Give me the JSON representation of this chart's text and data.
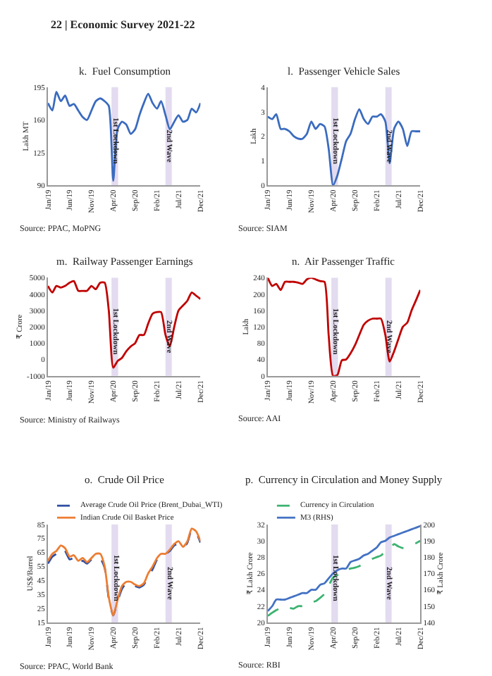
{
  "chart_data": [
    {
      "type": "line",
      "title": "k.  Fuel Consumption",
      "ylabel": "Lakh MT",
      "annotations": [
        "22 | Economic Survey 2021-22",
        "Source: PPAC, MoPNG"
      ],
      "x": [
        "2019-01",
        "2019-02",
        "2019-03",
        "2019-04",
        "2019-05",
        "2019-06",
        "2019-07",
        "2019-08",
        "2019-09",
        "2019-10",
        "2019-11",
        "2019-12",
        "2020-01",
        "2020-02",
        "2020-03",
        "2020-04",
        "2020-05",
        "2020-06",
        "2020-07",
        "2020-08",
        "2020-09",
        "2020-10",
        "2020-11",
        "2020-12",
        "2021-01",
        "2021-02",
        "2021-03",
        "2021-04",
        "2021-05",
        "2021-06",
        "2021-07",
        "2021-08",
        "2021-09",
        "2021-10",
        "2021-11",
        "2021-12"
      ],
      "xlim": [
        "2019-01",
        "2021-12"
      ],
      "xticks": [
        {
          "value": "2019-01",
          "label": "Jan/19"
        },
        {
          "value": "2019-06",
          "label": "Jun/19"
        },
        {
          "value": "2019-11",
          "label": "Nov/19"
        },
        {
          "value": "2020-04",
          "label": "Apr/20"
        },
        {
          "value": "2020-09",
          "label": "Sep/20"
        },
        {
          "value": "2021-02",
          "label": "Feb/21"
        },
        {
          "value": "2021-07",
          "label": "Jul/21"
        },
        {
          "value": "2021-12",
          "label": "Dec/21"
        }
      ],
      "ylim": [
        90,
        195
      ],
      "yticks": [
        90,
        125,
        160,
        195
      ],
      "line_style": "solid",
      "series": [
        {
          "color": "#3a6bbf",
          "values": [
            178,
            170,
            190,
            180,
            186,
            175,
            177,
            170,
            163,
            160,
            170,
            180,
            183,
            180,
            175,
            95,
            150,
            158,
            155,
            145,
            150,
            165,
            178,
            188,
            178,
            172,
            180,
            165,
            150,
            158,
            165,
            158,
            160,
            172,
            168,
            178
          ]
        }
      ],
      "bands": [
        {
          "axis": "x",
          "from": "2020-03-20",
          "to": "2020-05-05",
          "label": "1st Lockdown",
          "color": "#e3dbef"
        },
        {
          "axis": "x",
          "from": "2021-04-01",
          "to": "2021-05-15",
          "label": "2nd Wave",
          "color": "#e3dbef"
        }
      ]
    },
    {
      "type": "line",
      "title": "l.  Passenger Vehicle Sales",
      "ylabel": "Lakh",
      "annotations": [
        "Source: SIAM"
      ],
      "x": [
        "2019-01",
        "2019-02",
        "2019-03",
        "2019-04",
        "2019-05",
        "2019-06",
        "2019-07",
        "2019-08",
        "2019-09",
        "2019-10",
        "2019-11",
        "2019-12",
        "2020-01",
        "2020-02",
        "2020-03",
        "2020-04",
        "2020-05",
        "2020-06",
        "2020-07",
        "2020-08",
        "2020-09",
        "2020-10",
        "2020-11",
        "2020-12",
        "2021-01",
        "2021-02",
        "2021-03",
        "2021-04",
        "2021-05",
        "2021-06",
        "2021-07",
        "2021-08",
        "2021-09",
        "2021-10",
        "2021-11",
        "2021-12"
      ],
      "xlim": [
        "2019-01",
        "2021-12"
      ],
      "xticks": [
        {
          "value": "2019-01",
          "label": "Jan/19"
        },
        {
          "value": "2019-06",
          "label": "Jun/19"
        },
        {
          "value": "2019-11",
          "label": "Nov/19"
        },
        {
          "value": "2020-04",
          "label": "Apr/20"
        },
        {
          "value": "2020-09",
          "label": "Sep/20"
        },
        {
          "value": "2021-02",
          "label": "Feb/21"
        },
        {
          "value": "2021-07",
          "label": "Jul/21"
        },
        {
          "value": "2021-12",
          "label": "Dec/21"
        }
      ],
      "ylim": [
        0,
        4
      ],
      "yticks": [
        0,
        1,
        2,
        3,
        4
      ],
      "line_style": "solid",
      "series": [
        {
          "color": "#3a6bbf",
          "values": [
            2.8,
            2.7,
            2.9,
            2.3,
            2.3,
            2.2,
            2.0,
            1.9,
            1.9,
            2.1,
            2.6,
            2.3,
            2.5,
            2.4,
            1.5,
            0.0,
            0.4,
            1.1,
            1.8,
            2.1,
            2.7,
            3.1,
            2.7,
            2.5,
            2.8,
            2.8,
            2.9,
            2.6,
            0.9,
            2.3,
            2.6,
            2.3,
            1.6,
            2.2,
            2.2,
            2.2
          ]
        }
      ],
      "bands": [
        {
          "axis": "x",
          "from": "2020-03-20",
          "to": "2020-05-05",
          "label": "1st Lockdown",
          "color": "#e3dbef"
        },
        {
          "axis": "x",
          "from": "2021-04-01",
          "to": "2021-05-15",
          "label": "2nd Wave",
          "color": "#e3dbef"
        }
      ]
    },
    {
      "type": "line",
      "title": "m.  Railway Passenger Earnings",
      "ylabel": "₹ Crore",
      "annotations": [
        "Source: Ministry of Railways"
      ],
      "x": [
        "2019-01",
        "2019-02",
        "2019-03",
        "2019-04",
        "2019-05",
        "2019-06",
        "2019-07",
        "2019-08",
        "2019-09",
        "2019-10",
        "2019-11",
        "2019-12",
        "2020-01",
        "2020-02",
        "2020-03",
        "2020-04",
        "2020-05",
        "2020-06",
        "2020-07",
        "2020-08",
        "2020-09",
        "2020-10",
        "2020-11",
        "2020-12",
        "2021-01",
        "2021-02",
        "2021-03",
        "2021-04",
        "2021-05",
        "2021-06",
        "2021-07",
        "2021-08",
        "2021-09",
        "2021-10",
        "2021-11",
        "2021-12"
      ],
      "xlim": [
        "2019-01",
        "2021-12"
      ],
      "xticks": [
        {
          "value": "2019-01",
          "label": "Jan/19"
        },
        {
          "value": "2019-06",
          "label": "Jun/19"
        },
        {
          "value": "2019-11",
          "label": "Nov/19"
        },
        {
          "value": "2020-04",
          "label": "Apr/20"
        },
        {
          "value": "2020-09",
          "label": "Sep/20"
        },
        {
          "value": "2021-02",
          "label": "Feb/21"
        },
        {
          "value": "2021-07",
          "label": "Jul/21"
        },
        {
          "value": "2021-12",
          "label": "Dec/21"
        }
      ],
      "ylim": [
        -1000,
        5000
      ],
      "yticks": [
        -1000,
        0,
        1000,
        2000,
        3000,
        4000,
        5000
      ],
      "line_style": "solid",
      "series": [
        {
          "color": "#c00000",
          "values": [
            4500,
            4100,
            4500,
            4400,
            4500,
            4700,
            4800,
            4200,
            4200,
            4200,
            4500,
            4300,
            4700,
            4700,
            3000,
            -500,
            -100,
            100,
            500,
            800,
            1000,
            1500,
            1500,
            2200,
            2800,
            2900,
            2900,
            1500,
            800,
            2000,
            3000,
            3300,
            3600,
            4100,
            3900,
            3700
          ]
        }
      ],
      "bands": [
        {
          "axis": "x",
          "from": "2020-03-20",
          "to": "2020-05-05",
          "label": "1st Lockdown",
          "color": "#e3dbef"
        },
        {
          "axis": "x",
          "from": "2021-04-01",
          "to": "2021-05-15",
          "label": "2nd Wave",
          "color": "#e3dbef"
        }
      ]
    },
    {
      "type": "line",
      "title": "n.  Air Passenger Traffic",
      "ylabel": "Lakh",
      "annotations": [
        "Source: AAI"
      ],
      "x": [
        "2019-01",
        "2019-02",
        "2019-03",
        "2019-04",
        "2019-05",
        "2019-06",
        "2019-07",
        "2019-08",
        "2019-09",
        "2019-10",
        "2019-11",
        "2019-12",
        "2020-01",
        "2020-02",
        "2020-03",
        "2020-04",
        "2020-05",
        "2020-06",
        "2020-07",
        "2020-08",
        "2020-09",
        "2020-10",
        "2020-11",
        "2020-12",
        "2021-01",
        "2021-02",
        "2021-03",
        "2021-04",
        "2021-05",
        "2021-06",
        "2021-07",
        "2021-08",
        "2021-09",
        "2021-10",
        "2021-11",
        "2021-12"
      ],
      "xlim": [
        "2019-01",
        "2021-12"
      ],
      "xticks": [
        {
          "value": "2019-01",
          "label": "Jan/19"
        },
        {
          "value": "2019-06",
          "label": "Jun/19"
        },
        {
          "value": "2019-11",
          "label": "Nov/19"
        },
        {
          "value": "2020-04",
          "label": "Apr/20"
        },
        {
          "value": "2020-09",
          "label": "Sep/20"
        },
        {
          "value": "2021-02",
          "label": "Feb/21"
        },
        {
          "value": "2021-07",
          "label": "Jul/21"
        },
        {
          "value": "2021-12",
          "label": "Dec/21"
        }
      ],
      "ylim": [
        0,
        240
      ],
      "yticks": [
        0,
        40,
        80,
        120,
        160,
        200,
        240
      ],
      "line_style": "solid",
      "series": [
        {
          "color": "#c00000",
          "values": [
            240,
            220,
            225,
            210,
            230,
            230,
            230,
            228,
            225,
            236,
            240,
            236,
            232,
            230,
            100,
            0,
            2,
            38,
            40,
            55,
            75,
            100,
            125,
            135,
            140,
            140,
            140,
            100,
            35,
            60,
            90,
            120,
            130,
            160,
            185,
            210
          ]
        }
      ],
      "bands": [
        {
          "axis": "x",
          "from": "2020-03-20",
          "to": "2020-05-05",
          "label": "1st Lockdown",
          "color": "#e3dbef"
        },
        {
          "axis": "x",
          "from": "2021-04-01",
          "to": "2021-05-15",
          "label": "2nd Wave",
          "color": "#e3dbef"
        }
      ]
    },
    {
      "type": "line",
      "title": "o.  Crude Oil Price",
      "ylabel": "US$/Barrel",
      "annotations": [
        "Source: PPAC, World Bank"
      ],
      "legend": "top",
      "x": [
        "2019-01",
        "2019-02",
        "2019-03",
        "2019-04",
        "2019-05",
        "2019-06",
        "2019-07",
        "2019-08",
        "2019-09",
        "2019-10",
        "2019-11",
        "2019-12",
        "2020-01",
        "2020-02",
        "2020-03",
        "2020-04",
        "2020-05",
        "2020-06",
        "2020-07",
        "2020-08",
        "2020-09",
        "2020-10",
        "2020-11",
        "2020-12",
        "2021-01",
        "2021-02",
        "2021-03",
        "2021-04",
        "2021-05",
        "2021-06",
        "2021-07",
        "2021-08",
        "2021-09",
        "2021-10",
        "2021-11",
        "2021-12"
      ],
      "xlim": [
        "2019-01",
        "2021-12"
      ],
      "xticks": [
        {
          "value": "2019-01",
          "label": "Jan/19"
        },
        {
          "value": "2019-06",
          "label": "Jun/19"
        },
        {
          "value": "2019-11",
          "label": "Nov/19"
        },
        {
          "value": "2020-04",
          "label": "Apr/20"
        },
        {
          "value": "2020-09",
          "label": "Sep/20"
        },
        {
          "value": "2021-02",
          "label": "Feb/21"
        },
        {
          "value": "2021-07",
          "label": "Jul/21"
        },
        {
          "value": "2021-12",
          "label": "Dec/21"
        }
      ],
      "ylim": [
        15,
        85
      ],
      "yticks": [
        15,
        25,
        35,
        45,
        55,
        65,
        75,
        85
      ],
      "line_style": "solid",
      "series": [
        {
          "name": "Average Crude Oil Price (Brent_Dubai_WTI)",
          "color": "#2e4fa3",
          "line_style": "dashed",
          "values": [
            57,
            62,
            64,
            68,
            66,
            60,
            61,
            57,
            59,
            57,
            60,
            62,
            61,
            54,
            32,
            20,
            30,
            39,
            43,
            43,
            41,
            40,
            42,
            48,
            53,
            60,
            63,
            64,
            66,
            70,
            71,
            68,
            72,
            81,
            79,
            72
          ]
        },
        {
          "name": "Indian Crude Oil Basket Price",
          "color": "#ed7d31",
          "values": [
            59,
            64,
            66,
            70,
            68,
            62,
            63,
            59,
            61,
            58,
            61,
            64,
            64,
            55,
            33,
            20,
            31,
            41,
            44,
            44,
            42,
            41,
            43,
            50,
            55,
            61,
            64,
            64,
            67,
            71,
            73,
            69,
            73,
            82,
            80,
            73
          ]
        }
      ],
      "bands": [
        {
          "axis": "x",
          "from": "2020-03-20",
          "to": "2020-05-05",
          "label": "1st Lockdown",
          "color": "#e3dbef"
        },
        {
          "axis": "x",
          "from": "2021-04-01",
          "to": "2021-05-15",
          "label": "2nd Wave",
          "color": "#e3dbef"
        }
      ]
    },
    {
      "type": "line",
      "title": "p.  Currency in Circulation and Money Supply",
      "ylabel": "₹ Lakh Crore",
      "y2label": "₹ Lakh Crore",
      "annotations": [
        "Source: RBI"
      ],
      "legend": "top",
      "x": [
        "2019-01",
        "2019-02",
        "2019-03",
        "2019-04",
        "2019-05",
        "2019-06",
        "2019-07",
        "2019-08",
        "2019-09",
        "2019-10",
        "2019-11",
        "2019-12",
        "2020-01",
        "2020-02",
        "2020-03",
        "2020-04",
        "2020-05",
        "2020-06",
        "2020-07",
        "2020-08",
        "2020-09",
        "2020-10",
        "2020-11",
        "2020-12",
        "2021-01",
        "2021-02",
        "2021-03",
        "2021-04",
        "2021-05",
        "2021-06",
        "2021-07",
        "2021-08",
        "2021-09",
        "2021-10",
        "2021-11",
        "2021-12"
      ],
      "xlim": [
        "2019-01",
        "2021-12"
      ],
      "xticks": [
        {
          "value": "2019-01",
          "label": "Jan/19"
        },
        {
          "value": "2019-06",
          "label": "Jun/19"
        },
        {
          "value": "2019-11",
          "label": "Nov/19"
        },
        {
          "value": "2020-04",
          "label": "Apr/20"
        },
        {
          "value": "2020-09",
          "label": "Sep/20"
        },
        {
          "value": "2021-02",
          "label": "Feb/21"
        },
        {
          "value": "2021-07",
          "label": "Jul/21"
        },
        {
          "value": "2021-12",
          "label": "Dec/21"
        }
      ],
      "ylim": [
        20,
        32
      ],
      "yticks": [
        20,
        22,
        24,
        26,
        28,
        30,
        32
      ],
      "y2lim": [
        140,
        200
      ],
      "y2ticks": [
        140,
        150,
        160,
        170,
        180,
        190,
        200
      ],
      "line_style": "solid",
      "series": [
        {
          "name": "Currency in Circulation",
          "color": "#3cb371",
          "line_style": "dashed",
          "values": [
            20.8,
            21.2,
            21.5,
            21.8,
            22.0,
            21.8,
            21.7,
            22.0,
            22.0,
            22.1,
            22.5,
            22.6,
            23.0,
            23.5,
            24.5,
            25.5,
            25.8,
            26.4,
            26.4,
            26.6,
            26.7,
            26.9,
            27.2,
            27.5,
            27.8,
            28.0,
            28.2,
            28.7,
            29.0,
            29.6,
            29.3,
            29.1,
            29.1,
            29.4,
            29.7,
            30.0
          ]
        },
        {
          "name": "M3 (RHS)",
          "color": "#4472c4",
          "axis": "y2",
          "values": [
            147,
            150,
            154,
            154,
            154,
            155,
            156,
            157,
            158,
            158,
            160,
            160,
            163,
            164,
            167,
            170,
            172,
            173,
            173,
            177,
            178,
            179,
            181,
            182,
            184,
            186,
            189,
            190,
            192,
            193,
            194,
            195,
            196,
            197,
            198,
            199
          ]
        }
      ],
      "bands": [
        {
          "axis": "x",
          "from": "2020-03-20",
          "to": "2020-05-05",
          "label": "1st Lockdown",
          "color": "#e3dbef"
        },
        {
          "axis": "x",
          "from": "2021-04-01",
          "to": "2021-05-15",
          "label": "2nd Wave",
          "color": "#e3dbef"
        }
      ]
    }
  ]
}
